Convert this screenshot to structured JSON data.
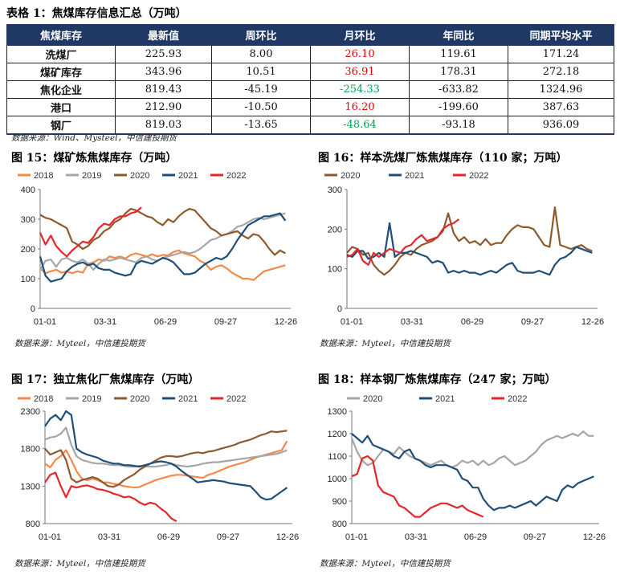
{
  "table": {
    "caption": "表格 1：焦煤库存信息汇总（万吨）",
    "headers": [
      "焦煤库存",
      "最新值",
      "周环比",
      "月环比",
      "年同比",
      "同期平均水平"
    ],
    "rows": [
      {
        "name": "洗煤厂",
        "latest": "225.93",
        "wow": "8.00",
        "mom": "26.10",
        "mom_color": "#e00000",
        "yoy": "119.61",
        "avg": "171.24"
      },
      {
        "name": "煤矿库存",
        "latest": "343.96",
        "wow": "10.51",
        "mom": "36.91",
        "mom_color": "#e00000",
        "yoy": "178.31",
        "avg": "272.18"
      },
      {
        "name": "焦化企业",
        "latest": "819.43",
        "wow": "-45.19",
        "mom": "-254.33",
        "mom_color": "#00a651",
        "yoy": "-633.82",
        "avg": "1324.96"
      },
      {
        "name": "港口",
        "latest": "212.90",
        "wow": "-10.50",
        "mom": "16.20",
        "mom_color": "#e00000",
        "yoy": "-199.60",
        "avg": "387.63"
      },
      {
        "name": "钢厂",
        "latest": "819.03",
        "wow": "-13.65",
        "mom": "-48.64",
        "mom_color": "#00a651",
        "yoy": "-93.18",
        "avg": "936.09"
      }
    ],
    "source": "数据来源：Wind、Mysteel，中信建投期货"
  },
  "chart_data": [
    {
      "type": "line",
      "title": "图 15：煤矿炼焦煤库存（万吨）",
      "source": "数据来源：Myteel，中信建投期货",
      "xticks": [
        "01-01",
        "03-31",
        "06-29",
        "09-27",
        "12-26"
      ],
      "ylim": [
        0,
        400
      ],
      "yticks": [
        0,
        100,
        200,
        300,
        400
      ],
      "series": [
        {
          "name": "2018",
          "color": "#f4894a",
          "values": [
            135,
            118,
            125,
            130,
            120,
            125,
            118,
            125,
            120,
            150,
            155,
            165,
            160,
            175,
            170,
            175,
            168,
            180,
            185,
            180,
            175,
            182,
            175,
            180,
            178,
            190,
            195,
            185,
            180,
            175,
            160,
            150,
            130,
            140,
            145,
            135,
            120,
            110,
            100,
            100,
            95,
            110,
            125,
            130,
            135,
            140,
            145
          ]
        },
        {
          "name": "2019",
          "color": "#a6a6a6",
          "values": [
            130,
            160,
            165,
            140,
            165,
            170,
            160,
            155,
            165,
            150,
            130,
            150,
            165,
            160,
            165,
            170,
            165,
            160,
            155,
            170,
            175,
            165,
            160,
            170,
            175,
            180,
            185,
            190,
            185,
            190,
            200,
            215,
            230,
            235,
            245,
            250,
            260,
            275,
            280,
            290,
            300,
            305,
            300,
            305,
            310,
            315,
            320
          ]
        },
        {
          "name": "2020",
          "color": "#8c5a2c",
          "values": [
            315,
            305,
            300,
            290,
            280,
            270,
            225,
            215,
            200,
            210,
            230,
            240,
            260,
            270,
            290,
            300,
            320,
            335,
            330,
            320,
            310,
            305,
            290,
            280,
            300,
            290,
            310,
            325,
            335,
            330,
            310,
            290,
            270,
            260,
            245,
            250,
            255,
            260,
            245,
            235,
            250,
            245,
            225,
            200,
            180,
            195,
            185
          ]
        },
        {
          "name": "2021",
          "color": "#1f4e79",
          "values": [
            175,
            110,
            90,
            95,
            100,
            125,
            140,
            150,
            155,
            145,
            150,
            135,
            130,
            130,
            120,
            115,
            110,
            115,
            150,
            160,
            155,
            150,
            160,
            170,
            165,
            155,
            135,
            115,
            115,
            120,
            135,
            150,
            160,
            170,
            165,
            175,
            200,
            230,
            255,
            280,
            290,
            300,
            310,
            310,
            315,
            320,
            295
          ]
        },
        {
          "name": "2022",
          "color": "#e3272b",
          "values": [
            255,
            215,
            245,
            210,
            190,
            175,
            195,
            210,
            225,
            220,
            240,
            270,
            285,
            280,
            300,
            310,
            310,
            320,
            325,
            340
          ]
        }
      ]
    },
    {
      "type": "line",
      "title": "图 16：样本洗煤厂炼焦煤库存（110 家；万吨）",
      "source": "数据来源：Myteel，中信建投期货",
      "xticks": [
        "01-01",
        "03-31",
        "06-29",
        "09-27",
        "12-26"
      ],
      "ylim": [
        0,
        300
      ],
      "yticks": [
        0,
        100,
        200,
        300
      ],
      "series": [
        {
          "name": "2020",
          "color": "#8c5a2c",
          "values": [
            140,
            155,
            150,
            135,
            140,
            110,
            95,
            85,
            95,
            110,
            130,
            140,
            135,
            150,
            160,
            165,
            170,
            180,
            195,
            240,
            190,
            170,
            180,
            165,
            170,
            160,
            175,
            160,
            165,
            165,
            185,
            200,
            210,
            205,
            205,
            200,
            180,
            160,
            155,
            255,
            160,
            155,
            150,
            155,
            160,
            150,
            145
          ]
        },
        {
          "name": "2021",
          "color": "#1f4e79",
          "values": [
            135,
            130,
            145,
            145,
            125,
            130,
            140,
            130,
            215,
            130,
            140,
            140,
            145,
            140,
            135,
            130,
            115,
            120,
            115,
            90,
            95,
            90,
            95,
            90,
            90,
            85,
            90,
            95,
            90,
            100,
            110,
            115,
            95,
            90,
            90,
            90,
            95,
            90,
            85,
            110,
            125,
            130,
            140,
            155,
            150,
            145,
            140
          ]
        },
        {
          "name": "2022",
          "color": "#e3272b",
          "values": [
            130,
            135,
            150,
            120,
            110,
            140,
            130,
            140,
            150,
            145,
            140,
            155,
            160,
            175,
            185,
            170,
            175,
            180,
            200,
            210,
            215,
            225
          ]
        }
      ]
    },
    {
      "type": "line",
      "title": "图 17：独立焦化厂焦煤库存（万吨）",
      "source": "数据来源：Myteel，中信建投期货",
      "xticks": [
        "01-01",
        "03-31",
        "06-29",
        "09-27",
        "12-26"
      ],
      "ylim": [
        800,
        2300
      ],
      "yticks": [
        800,
        1300,
        1800,
        2300
      ],
      "series": [
        {
          "name": "2018",
          "color": "#f4894a",
          "values": [
            1600,
            1550,
            1650,
            1700,
            1780,
            1650,
            1500,
            1400,
            1380,
            1400,
            1380,
            1350,
            1350,
            1330,
            1320,
            1300,
            1290,
            1280,
            1290,
            1320,
            1350,
            1380,
            1400,
            1420,
            1440,
            1450,
            1450,
            1440,
            1430,
            1420,
            1410,
            1450,
            1470,
            1500,
            1530,
            1560,
            1580,
            1600,
            1620,
            1650,
            1680,
            1700,
            1720,
            1740,
            1760,
            1780,
            1900
          ]
        },
        {
          "name": "2019",
          "color": "#a6a6a6",
          "values": [
            1920,
            1950,
            1960,
            2000,
            2080,
            1850,
            1700,
            1650,
            1630,
            1610,
            1600,
            1600,
            1590,
            1580,
            1580,
            1570,
            1560,
            1560,
            1570,
            1570,
            1560,
            1560,
            1570,
            1580,
            1600,
            1580,
            1570,
            1560,
            1570,
            1580,
            1600,
            1610,
            1620,
            1620,
            1630,
            1640,
            1650,
            1660,
            1670,
            1680,
            1690,
            1700,
            1710,
            1720,
            1730,
            1750,
            1780
          ]
        },
        {
          "name": "2020",
          "color": "#8c5a2c",
          "values": [
            1800,
            1720,
            1750,
            1780,
            1650,
            1400,
            1350,
            1380,
            1400,
            1420,
            1400,
            1350,
            1300,
            1290,
            1320,
            1380,
            1420,
            1460,
            1520,
            1560,
            1600,
            1640,
            1680,
            1700,
            1700,
            1690,
            1700,
            1720,
            1740,
            1750,
            1740,
            1760,
            1770,
            1790,
            1810,
            1830,
            1850,
            1880,
            1900,
            1920,
            1950,
            1980,
            2000,
            2030,
            2020,
            2030,
            2040
          ]
        },
        {
          "name": "2021",
          "color": "#1f4e79",
          "values": [
            2100,
            2200,
            2250,
            2180,
            2300,
            2250,
            1800,
            1750,
            1720,
            1700,
            1680,
            1640,
            1620,
            1600,
            1600,
            1580,
            1580,
            1570,
            1560,
            1580,
            1600,
            1620,
            1630,
            1620,
            1600,
            1560,
            1500,
            1450,
            1400,
            1350,
            1360,
            1370,
            1380,
            1370,
            1360,
            1340,
            1330,
            1320,
            1310,
            1300,
            1230,
            1150,
            1120,
            1130,
            1180,
            1230,
            1280
          ]
        },
        {
          "name": "2022",
          "color": "#e3272b",
          "values": [
            1350,
            1450,
            1480,
            1300,
            1150,
            1300,
            1280,
            1300,
            1310,
            1290,
            1260,
            1250,
            1230,
            1200,
            1180,
            1150,
            1160,
            1130,
            1080,
            1050,
            1080,
            1060,
            1000,
            950,
            870,
            830
          ]
        }
      ]
    },
    {
      "type": "line",
      "title": "图 18：样本钢厂炼焦煤库存（247 家；万吨）",
      "source": "数据来源：Myteel，中信建投期货",
      "xticks": [
        "01-01",
        "03-31",
        "06-29",
        "09-27",
        "12-26"
      ],
      "ylim": [
        800,
        1300
      ],
      "yticks": [
        800,
        900,
        1000,
        1100,
        1200,
        1300
      ],
      "series": [
        {
          "name": "2020",
          "color": "#a6a6a6",
          "values": [
            1180,
            1120,
            1080,
            1060,
            1070,
            1100,
            1130,
            1120,
            1110,
            1140,
            1120,
            1100,
            1090,
            1080,
            1070,
            1060,
            1070,
            1080,
            1060,
            1050,
            1060,
            1080,
            1070,
            1080,
            1060,
            1080,
            1060,
            1070,
            1090,
            1100,
            1080,
            1060,
            1070,
            1080,
            1100,
            1120,
            1150,
            1170,
            1180,
            1190,
            1180,
            1190,
            1200,
            1190,
            1210,
            1190,
            1190
          ]
        },
        {
          "name": "2021",
          "color": "#1f4e79",
          "values": [
            1200,
            1180,
            1160,
            1190,
            1150,
            1140,
            1130,
            1120,
            1100,
            1090,
            1120,
            1130,
            1090,
            1080,
            1060,
            1050,
            1060,
            1060,
            1060,
            1050,
            1040,
            1000,
            990,
            960,
            960,
            910,
            880,
            860,
            870,
            870,
            880,
            870,
            880,
            890,
            900,
            880,
            900,
            920,
            910,
            900,
            950,
            970,
            960,
            980,
            990,
            1000,
            1010
          ]
        },
        {
          "name": "2022",
          "color": "#e3272b",
          "values": [
            1010,
            1020,
            1090,
            1100,
            1080,
            970,
            940,
            930,
            920,
            880,
            870,
            850,
            830,
            830,
            850,
            870,
            880,
            890,
            890,
            880,
            870,
            880,
            860,
            850,
            840,
            830
          ]
        }
      ]
    }
  ]
}
